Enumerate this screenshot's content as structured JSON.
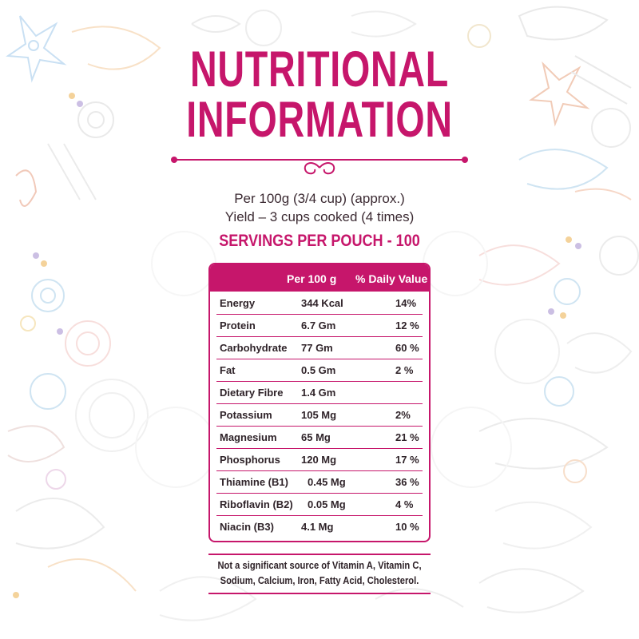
{
  "header": {
    "title_line1": "NUTRITIONAL",
    "title_line2": "INFORMATION"
  },
  "serving_info": {
    "per": "Per 100g (3/4 cup) (approx.)",
    "yield": "Yield – 3 cups cooked (4 times)",
    "servings": "SERVINGS PER POUCH - 100"
  },
  "table": {
    "headers": {
      "per_100g": "Per 100 g",
      "daily_value": "% Daily Value"
    },
    "rows": [
      {
        "nutrient": "Energy",
        "amount": "344 Kcal",
        "daily_value": "14%"
      },
      {
        "nutrient": "Protein",
        "amount": "6.7 Gm",
        "daily_value": "12 %"
      },
      {
        "nutrient": "Carbohydrate",
        "amount": "77 Gm",
        "daily_value": "60 %"
      },
      {
        "nutrient": "Fat",
        "amount": "0.5 Gm",
        "daily_value": "2 %"
      },
      {
        "nutrient": "Dietary Fibre",
        "amount": "1.4 Gm",
        "daily_value": ""
      },
      {
        "nutrient": "Potassium",
        "amount": "105 Mg",
        "daily_value": "2%"
      },
      {
        "nutrient": "Magnesium",
        "amount": "65 Mg",
        "daily_value": "21 %"
      },
      {
        "nutrient": "Phosphorus",
        "amount": "120 Mg",
        "daily_value": "17 %"
      },
      {
        "nutrient": "Thiamine (B1)",
        "amount": "0.45 Mg",
        "daily_value": "36 %"
      },
      {
        "nutrient": "Riboflavin (B2)",
        "amount": "0.05 Mg",
        "daily_value": "4 %"
      },
      {
        "nutrient": "Niacin (B3)",
        "amount": "4.1 Mg",
        "daily_value": "10 %"
      }
    ]
  },
  "footnote": {
    "line1": "Not a significant source of Vitamin A, Vitamin C,",
    "line2": "Sodium, Calcium, Iron, Fatty Acid, Cholesterol."
  },
  "colors": {
    "accent": "#c6166b",
    "text": "#2f2329",
    "background": "#ffffff"
  }
}
